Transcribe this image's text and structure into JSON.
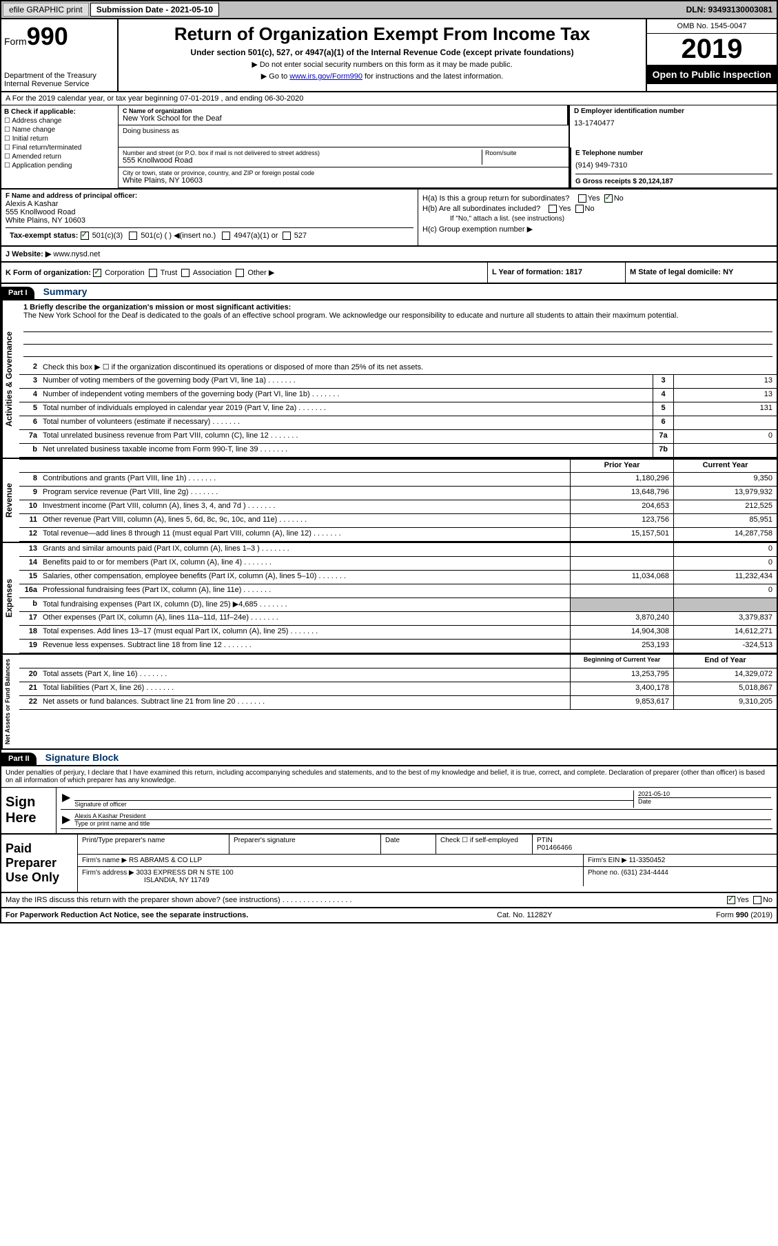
{
  "topbar": {
    "efile_label": "efile GRAPHIC print",
    "submission_label": "Submission Date - 2021-05-10",
    "dln": "DLN: 93493130003081"
  },
  "header": {
    "form_label": "Form",
    "form_number": "990",
    "dept1": "Department of the Treasury",
    "dept2": "Internal Revenue Service",
    "title": "Return of Organization Exempt From Income Tax",
    "subtitle": "Under section 501(c), 527, or 4947(a)(1) of the Internal Revenue Code (except private foundations)",
    "arrow1": "▶ Do not enter social security numbers on this form as it may be made public.",
    "arrow2_pre": "▶ Go to ",
    "arrow2_link": "www.irs.gov/Form990",
    "arrow2_post": " for instructions and the latest information.",
    "omb": "OMB No. 1545-0047",
    "year": "2019",
    "open_public": "Open to Public Inspection"
  },
  "row_a": "A For the 2019 calendar year, or tax year beginning 07-01-2019    , and ending 06-30-2020",
  "col_b": {
    "label": "B Check if applicable:",
    "items": [
      "Address change",
      "Name change",
      "Initial return",
      "Final return/terminated",
      "Amended return",
      "Application pending"
    ]
  },
  "c_name": {
    "label": "C Name of organization",
    "value": "New York School for the Deaf",
    "dba_label": "Doing business as",
    "num_label": "Number and street (or P.O. box if mail is not delivered to street address)",
    "num_value": "555 Knollwood Road",
    "room_label": "Room/suite",
    "city_label": "City or town, state or province, country, and ZIP or foreign postal code",
    "city_value": "White Plains, NY  10603"
  },
  "d_ein": {
    "label": "D Employer identification number",
    "value": "13-1740477"
  },
  "e_tel": {
    "label": "E Telephone number",
    "value": "(914) 949-7310"
  },
  "g_gross": {
    "label": "G Gross receipts $ 20,124,187"
  },
  "f_officer": {
    "label": "F  Name and address of principal officer:",
    "name": "Alexis A Kashar",
    "addr1": "555 Knollwood Road",
    "addr2": "White Plains, NY  10603"
  },
  "h": {
    "ha": "H(a)  Is this a group return for subordinates?",
    "hb": "H(b)  Are all subordinates included?",
    "hb_note": "If \"No,\" attach a list. (see instructions)",
    "hc": "H(c)  Group exemption number ▶",
    "yes": "Yes",
    "no": "No"
  },
  "i_tax": {
    "label": "Tax-exempt status:",
    "opts": [
      "501(c)(3)",
      "501(c) (  ) ◀(insert no.)",
      "4947(a)(1) or",
      "527"
    ]
  },
  "j_web": {
    "label": "J  Website: ▶",
    "value": "www.nysd.net"
  },
  "k": {
    "label": "K Form of organization:",
    "opts": [
      "Corporation",
      "Trust",
      "Association",
      "Other ▶"
    ]
  },
  "l": {
    "label": "L Year of formation: 1817"
  },
  "m": {
    "label": "M State of legal domicile: NY"
  },
  "part1": {
    "num": "Part I",
    "title": "Summary"
  },
  "mission": {
    "line1_label": "1  Briefly describe the organization's mission or most significant activities:",
    "text": "The New York School for the Deaf is dedicated to the goals of an effective school program. We acknowledge our responsibility to educate and nurture all students to attain their maximum potential."
  },
  "gov_lines": [
    {
      "n": "2",
      "t": "Check this box ▶ ☐  if the organization discontinued its operations or disposed of more than 25% of its net assets."
    },
    {
      "n": "3",
      "t": "Number of voting members of the governing body (Part VI, line 1a)",
      "box": "3",
      "val": "13"
    },
    {
      "n": "4",
      "t": "Number of independent voting members of the governing body (Part VI, line 1b)",
      "box": "4",
      "val": "13"
    },
    {
      "n": "5",
      "t": "Total number of individuals employed in calendar year 2019 (Part V, line 2a)",
      "box": "5",
      "val": "131"
    },
    {
      "n": "6",
      "t": "Total number of volunteers (estimate if necessary)",
      "box": "6",
      "val": ""
    },
    {
      "n": "7a",
      "t": "Total unrelated business revenue from Part VIII, column (C), line 12",
      "box": "7a",
      "val": "0"
    },
    {
      "n": "b",
      "t": "Net unrelated business taxable income from Form 990-T, line 39",
      "box": "7b",
      "val": ""
    }
  ],
  "col_headers": {
    "prior": "Prior Year",
    "current": "Current Year"
  },
  "revenue_lines": [
    {
      "n": "8",
      "t": "Contributions and grants (Part VIII, line 1h)",
      "p": "1,180,296",
      "c": "9,350"
    },
    {
      "n": "9",
      "t": "Program service revenue (Part VIII, line 2g)",
      "p": "13,648,796",
      "c": "13,979,932"
    },
    {
      "n": "10",
      "t": "Investment income (Part VIII, column (A), lines 3, 4, and 7d )",
      "p": "204,653",
      "c": "212,525"
    },
    {
      "n": "11",
      "t": "Other revenue (Part VIII, column (A), lines 5, 6d, 8c, 9c, 10c, and 11e)",
      "p": "123,756",
      "c": "85,951"
    },
    {
      "n": "12",
      "t": "Total revenue—add lines 8 through 11 (must equal Part VIII, column (A), line 12)",
      "p": "15,157,501",
      "c": "14,287,758"
    }
  ],
  "expense_lines": [
    {
      "n": "13",
      "t": "Grants and similar amounts paid (Part IX, column (A), lines 1–3 )",
      "p": "",
      "c": "0"
    },
    {
      "n": "14",
      "t": "Benefits paid to or for members (Part IX, column (A), line 4)",
      "p": "",
      "c": "0"
    },
    {
      "n": "15",
      "t": "Salaries, other compensation, employee benefits (Part IX, column (A), lines 5–10)",
      "p": "11,034,068",
      "c": "11,232,434"
    },
    {
      "n": "16a",
      "t": "Professional fundraising fees (Part IX, column (A), line 11e)",
      "p": "",
      "c": "0"
    },
    {
      "n": "b",
      "t": "Total fundraising expenses (Part IX, column (D), line 25) ▶4,685",
      "shaded": true
    },
    {
      "n": "17",
      "t": "Other expenses (Part IX, column (A), lines 11a–11d, 11f–24e)",
      "p": "3,870,240",
      "c": "3,379,837"
    },
    {
      "n": "18",
      "t": "Total expenses. Add lines 13–17 (must equal Part IX, column (A), line 25)",
      "p": "14,904,308",
      "c": "14,612,271"
    },
    {
      "n": "19",
      "t": "Revenue less expenses. Subtract line 18 from line 12",
      "p": "253,193",
      "c": "-324,513"
    }
  ],
  "na_headers": {
    "beg": "Beginning of Current Year",
    "end": "End of Year"
  },
  "na_lines": [
    {
      "n": "20",
      "t": "Total assets (Part X, line 16)",
      "p": "13,253,795",
      "c": "14,329,072"
    },
    {
      "n": "21",
      "t": "Total liabilities (Part X, line 26)",
      "p": "3,400,178",
      "c": "5,018,867"
    },
    {
      "n": "22",
      "t": "Net assets or fund balances. Subtract line 21 from line 20",
      "p": "9,853,617",
      "c": "9,310,205"
    }
  ],
  "part2": {
    "num": "Part II",
    "title": "Signature Block"
  },
  "sig_decl": "Under penalties of perjury, I declare that I have examined this return, including accompanying schedules and statements, and to the best of my knowledge and belief, it is true, correct, and complete. Declaration of preparer (other than officer) is based on all information of which preparer has any knowledge.",
  "sign_here": {
    "label": "Sign Here",
    "sig_label": "Signature of officer",
    "date_label": "Date",
    "date_value": "2021-05-10",
    "name_value": "Alexis A Kashar  President",
    "name_label": "Type or print name and title"
  },
  "paid": {
    "label": "Paid Preparer Use Only",
    "r1": {
      "c1": "Print/Type preparer's name",
      "c2": "Preparer's signature",
      "c3": "Date",
      "c4": "Check ☐  if self-employed",
      "c5_label": "PTIN",
      "c5_val": "P01466466"
    },
    "r2": {
      "label": "Firm's name    ▶",
      "val": "RS ABRAMS & CO LLP",
      "ein_label": "Firm's EIN ▶",
      "ein_val": "11-3350452"
    },
    "r3": {
      "label": "Firm's address ▶",
      "val1": "3033 EXPRESS DR N STE 100",
      "val2": "ISLANDIA, NY  11749",
      "ph_label": "Phone no.",
      "ph_val": "(631) 234-4444"
    }
  },
  "discuss": {
    "text": "May the IRS discuss this return with the preparer shown above? (see instructions)",
    "yes": "Yes",
    "no": "No"
  },
  "footer": {
    "left": "For Paperwork Reduction Act Notice, see the separate instructions.",
    "mid": "Cat. No. 11282Y",
    "right": "Form 990 (2019)"
  },
  "sidebars": {
    "gov": "Activities & Governance",
    "rev": "Revenue",
    "exp": "Expenses",
    "na": "Net Assets or Fund Balances"
  }
}
